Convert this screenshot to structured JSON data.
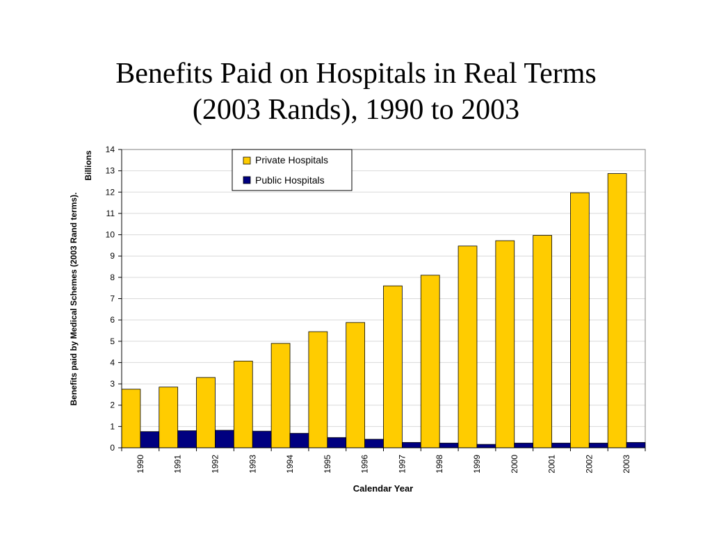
{
  "title_lines": [
    "Benefits Paid on Hospitals in Real Terms",
    "(2003 Rands), 1990 to 2003"
  ],
  "chart_data": {
    "type": "bar",
    "title": "Benefits Paid on Hospitals in Real Terms (2003 Rands), 1990 to 2003",
    "xlabel": "Calendar Year",
    "ylabel": "Benefits paid by Medical Schemes (2003 Rand terms).",
    "yunit": "Billions",
    "ylim": [
      0,
      14
    ],
    "yticks": [
      0,
      1,
      2,
      3,
      4,
      5,
      6,
      7,
      8,
      9,
      10,
      11,
      12,
      13,
      14
    ],
    "grid": true,
    "legend_position": "top-center",
    "categories": [
      "1990",
      "1991",
      "1992",
      "1993",
      "1994",
      "1995",
      "1996",
      "1997",
      "1998",
      "1999",
      "2000",
      "2001",
      "2002",
      "2003"
    ],
    "series": [
      {
        "name": "Private Hospitals",
        "color": "#FFCC00",
        "values": [
          2.75,
          2.85,
          3.3,
          4.07,
          4.9,
          5.45,
          5.88,
          7.6,
          8.1,
          9.47,
          9.72,
          9.97,
          11.97,
          12.87
        ]
      },
      {
        "name": "Public Hospitals",
        "color": "#000080",
        "values": [
          0.76,
          0.8,
          0.82,
          0.78,
          0.68,
          0.48,
          0.4,
          0.25,
          0.22,
          0.16,
          0.22,
          0.22,
          0.22,
          0.25
        ]
      }
    ]
  }
}
